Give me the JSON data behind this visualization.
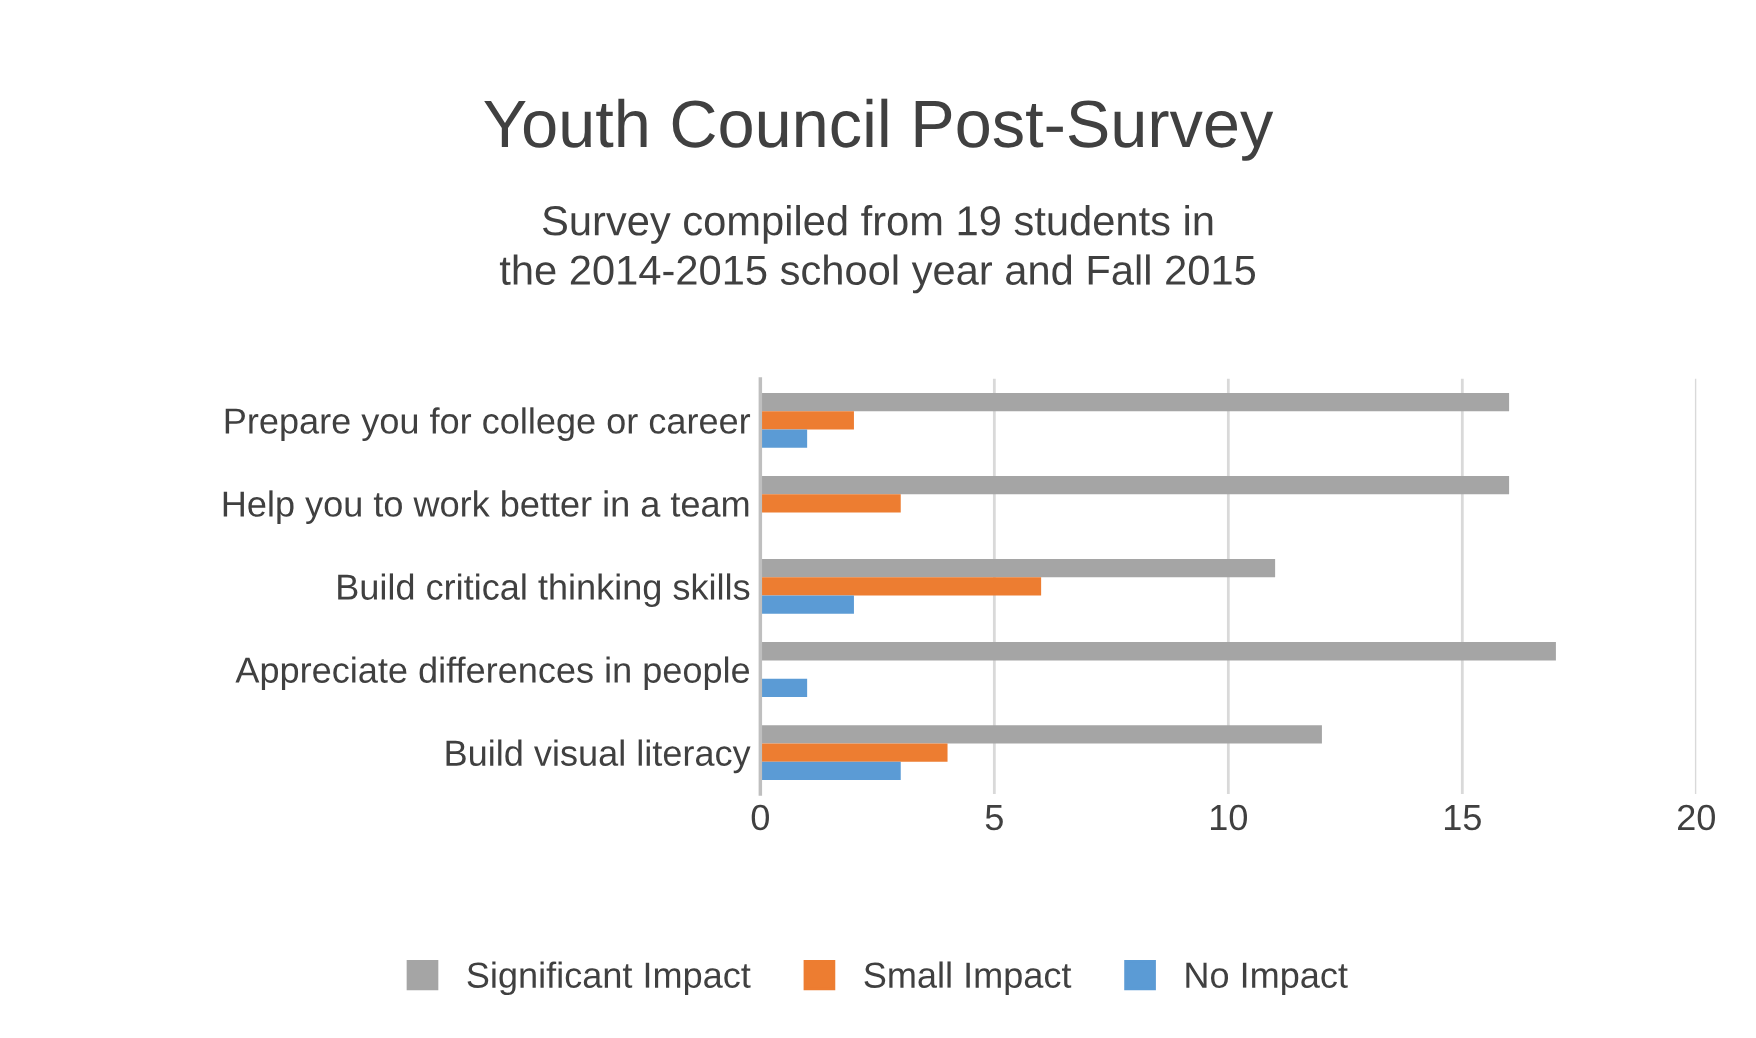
{
  "chart_data": {
    "type": "bar",
    "orientation": "horizontal",
    "title": "Youth Council Post-Survey",
    "subtitle": "Survey compiled from 19 students in\nthe 2014-2015 school year and Fall 2015",
    "categories": [
      "Prepare you for college or career",
      "Help you to work better in a team",
      "Build critical thinking skills",
      "Appreciate differences in people",
      "Build visual literacy"
    ],
    "series": [
      {
        "name": "Significant Impact",
        "color": "#a5a5a5",
        "values": [
          16,
          16,
          11,
          17,
          12
        ]
      },
      {
        "name": "Small Impact",
        "color": "#ed7d31",
        "values": [
          2,
          3,
          6,
          0,
          4
        ]
      },
      {
        "name": "No Impact",
        "color": "#5b9bd5",
        "values": [
          1,
          0,
          2,
          1,
          3
        ]
      }
    ],
    "xlim": [
      0,
      20
    ],
    "xticks": [
      0,
      5,
      10,
      15,
      20
    ],
    "grid": "x",
    "legend": "bottom"
  }
}
